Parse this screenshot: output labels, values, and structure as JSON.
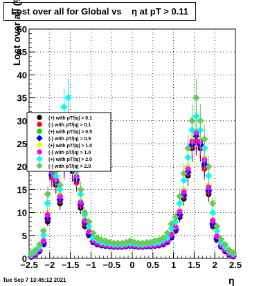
{
  "chart_data": {
    "type": "scatter",
    "title": "Lost over all for Global vs    η at pT > 0.11",
    "xlabel": "η",
    "ylabel": "Lost over all (%)",
    "xlim": [
      -2.5,
      2.5
    ],
    "ylim": [
      0,
      50
    ],
    "x_ticks": [
      "−2.5",
      "−2",
      "−1.5",
      "−1",
      "−0.5",
      "0",
      "0.5",
      "1",
      "1.5",
      "2",
      "2.5"
    ],
    "x_tick_values": [
      -2.5,
      -2,
      -1.5,
      -1,
      -0.5,
      0,
      0.5,
      1,
      1.5,
      2,
      2.5
    ],
    "y_ticks": [
      "0",
      "5",
      "10",
      "15",
      "20",
      "25",
      "30",
      "35",
      "40",
      "45",
      "50"
    ],
    "y_tick_values": [
      0,
      5,
      10,
      15,
      20,
      25,
      30,
      35,
      40,
      45,
      50
    ],
    "grid": true,
    "legend_position": "left-middle",
    "x": [
      -2.45,
      -2.35,
      -2.25,
      -2.15,
      -2.05,
      -1.95,
      -1.85,
      -1.75,
      -1.65,
      -1.55,
      -1.45,
      -1.35,
      -1.25,
      -1.15,
      -1.05,
      -0.95,
      -0.85,
      -0.75,
      -0.65,
      -0.55,
      -0.45,
      -0.35,
      -0.25,
      -0.15,
      -0.05,
      0.05,
      0.15,
      0.25,
      0.35,
      0.45,
      0.55,
      0.65,
      0.75,
      0.85,
      0.95,
      1.05,
      1.15,
      1.25,
      1.35,
      1.45,
      1.55,
      1.65,
      1.75,
      1.85,
      1.95,
      2.05,
      2.15,
      2.25,
      2.35,
      2.45
    ],
    "series": [
      {
        "name": "(+) with pT/|q| > 0.1",
        "color": "#000000",
        "marker": "circle",
        "values": [
          0.3,
          0.8,
          1.5,
          3.0,
          8.0,
          18.0,
          16.0,
          12.0,
          20.0,
          22.0,
          19.0,
          17.0,
          11.0,
          7.0,
          5.0,
          3.5,
          3.0,
          2.8,
          2.7,
          2.6,
          2.5,
          2.5,
          2.5,
          2.6,
          2.7,
          2.6,
          2.5,
          2.5,
          2.6,
          2.6,
          2.7,
          2.8,
          3.0,
          3.5,
          4.5,
          6.0,
          9.0,
          13.0,
          18.0,
          24.0,
          26.0,
          24.0,
          20.0,
          14.0,
          7.0,
          4.0,
          2.5,
          1.5,
          0.8,
          0.4
        ]
      },
      {
        "name": "(-) with pT/|q| > 0.1",
        "color": "#ff0000",
        "marker": "circle",
        "values": [
          0.4,
          0.9,
          1.6,
          3.2,
          8.5,
          17.5,
          16.5,
          12.5,
          19.5,
          21.5,
          19.5,
          16.5,
          11.5,
          7.5,
          5.2,
          3.6,
          3.1,
          2.9,
          2.8,
          2.7,
          2.6,
          2.6,
          2.6,
          2.7,
          2.8,
          2.7,
          2.6,
          2.6,
          2.7,
          2.7,
          2.8,
          2.9,
          3.1,
          3.6,
          4.7,
          6.2,
          9.3,
          13.5,
          18.5,
          24.5,
          25.5,
          24.5,
          19.5,
          14.5,
          7.3,
          4.2,
          2.6,
          1.6,
          0.9,
          0.5
        ]
      },
      {
        "name": "(+) with pT/|q| > 0.5",
        "color": "#00dd00",
        "marker": "circle",
        "values": [
          0.5,
          1.0,
          1.8,
          3.5,
          9.0,
          18.5,
          17.0,
          13.0,
          21.0,
          23.0,
          20.0,
          17.5,
          12.0,
          8.0,
          5.5,
          3.8,
          3.3,
          3.0,
          2.9,
          2.8,
          2.7,
          2.7,
          2.7,
          2.8,
          2.9,
          2.8,
          2.7,
          2.7,
          2.8,
          2.8,
          2.9,
          3.0,
          3.3,
          3.8,
          5.0,
          6.5,
          9.8,
          14.0,
          19.0,
          25.0,
          27.0,
          25.0,
          21.0,
          15.0,
          7.8,
          4.5,
          2.8,
          1.8,
          1.0,
          0.6
        ]
      },
      {
        "name": "(-) with pT/|q| > 0.5",
        "color": "#0000ff",
        "marker": "diamond",
        "values": [
          0.4,
          0.9,
          1.7,
          3.3,
          8.7,
          18.2,
          16.8,
          12.8,
          20.5,
          22.5,
          19.8,
          17.2,
          11.8,
          7.8,
          5.3,
          3.7,
          3.2,
          3.0,
          2.8,
          2.7,
          2.6,
          2.6,
          2.6,
          2.7,
          2.8,
          2.7,
          2.6,
          2.6,
          2.7,
          2.7,
          2.8,
          3.0,
          3.2,
          3.7,
          4.8,
          6.3,
          9.5,
          13.8,
          18.8,
          24.8,
          26.5,
          24.8,
          20.5,
          14.8,
          7.5,
          4.3,
          2.7,
          1.7,
          0.9,
          0.5
        ]
      },
      {
        "name": "(+) with pT/|q| > 1.0",
        "color": "#ffff00",
        "marker": "circle",
        "values": [
          0.6,
          1.1,
          2.0,
          4.0,
          10.0,
          19.0,
          17.5,
          14.0,
          22.0,
          24.0,
          21.0,
          18.0,
          12.5,
          8.5,
          6.0,
          4.0,
          3.5,
          3.2,
          3.0,
          2.9,
          2.8,
          2.8,
          2.8,
          2.9,
          3.0,
          2.9,
          2.8,
          2.8,
          2.9,
          2.9,
          3.0,
          3.2,
          3.5,
          4.0,
          5.5,
          7.0,
          10.5,
          15.0,
          20.0,
          26.0,
          28.0,
          26.0,
          22.0,
          16.0,
          8.5,
          5.0,
          3.0,
          2.0,
          1.1,
          0.7
        ]
      },
      {
        "name": "(-) with pT/|q| > 1.0",
        "color": "#ff00ff",
        "marker": "circle",
        "values": [
          0.5,
          1.0,
          1.9,
          3.8,
          9.5,
          18.8,
          17.2,
          13.5,
          21.5,
          23.5,
          20.5,
          17.8,
          12.2,
          8.2,
          5.8,
          3.9,
          3.4,
          3.1,
          2.9,
          2.8,
          2.7,
          2.7,
          2.7,
          2.8,
          2.9,
          2.8,
          2.7,
          2.7,
          2.8,
          2.8,
          2.9,
          3.1,
          3.4,
          3.9,
          5.2,
          6.8,
          10.2,
          14.5,
          19.5,
          25.5,
          27.5,
          25.5,
          21.5,
          15.5,
          8.2,
          4.8,
          2.9,
          1.9,
          1.0,
          0.6
        ]
      },
      {
        "name": "(+) with pT/|q| > 2.0",
        "color": "#00ffff",
        "marker": "diamond",
        "values": [
          0.8,
          1.5,
          2.5,
          5.0,
          12.0,
          20.0,
          18.0,
          15.0,
          33.0,
          35.0,
          23.0,
          19.0,
          14.0,
          9.5,
          7.0,
          4.5,
          4.0,
          3.5,
          3.3,
          3.2,
          3.0,
          3.0,
          3.0,
          3.2,
          3.3,
          3.2,
          3.0,
          3.0,
          3.2,
          3.2,
          3.3,
          3.5,
          4.0,
          4.5,
          6.5,
          8.0,
          12.0,
          17.0,
          22.0,
          28.0,
          31.0,
          28.0,
          24.0,
          18.0,
          10.0,
          6.0,
          3.5,
          2.5,
          1.5,
          1.0
        ]
      },
      {
        "name": "(-) with pT/|q| > 2.0",
        "color": "#66cc55",
        "marker": "diamond",
        "values": [
          1.0,
          1.8,
          3.0,
          6.0,
          14.0,
          21.0,
          19.0,
          16.0,
          28.0,
          30.0,
          25.0,
          20.0,
          15.0,
          10.0,
          8.0,
          5.5,
          4.5,
          4.0,
          3.8,
          3.5,
          3.3,
          3.3,
          3.3,
          3.5,
          3.8,
          3.5,
          3.3,
          3.3,
          3.5,
          3.5,
          3.8,
          4.0,
          4.5,
          5.5,
          7.5,
          9.0,
          13.5,
          18.5,
          24.0,
          30.0,
          35.0,
          30.0,
          26.0,
          20.0,
          12.0,
          7.0,
          4.2,
          3.0,
          1.8,
          1.2
        ]
      }
    ]
  },
  "footer": {
    "timestamp": "Tue Sep  7 13:45:12 2021"
  }
}
